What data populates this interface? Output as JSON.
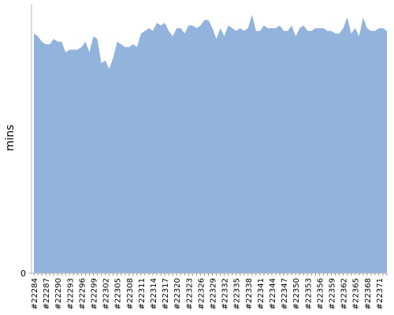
{
  "chart_data": {
    "type": "area",
    "ylabel": "mins",
    "categories": [
      "#22284",
      null,
      null,
      "#22287",
      null,
      null,
      "#22290",
      null,
      null,
      "#22293",
      null,
      null,
      "#22296",
      null,
      null,
      "#22299",
      null,
      null,
      "#22302",
      null,
      null,
      "#22305",
      null,
      null,
      "#22308",
      null,
      null,
      "#22311",
      null,
      null,
      "#22314",
      null,
      null,
      "#22317",
      null,
      null,
      "#22320",
      null,
      null,
      "#22323",
      null,
      null,
      "#22326",
      null,
      null,
      "#22329",
      null,
      null,
      "#22332",
      null,
      null,
      "#22335",
      null,
      null,
      "#22338",
      null,
      null,
      "#22341",
      null,
      null,
      "#22344",
      null,
      null,
      "#22347",
      null,
      null,
      "#22350",
      null,
      null,
      "#22353",
      null,
      null,
      "#22356",
      null,
      null,
      "#22359",
      null,
      null,
      "#22362",
      null,
      null,
      "#22365",
      null,
      null,
      "#22368",
      null,
      null,
      "#22371",
      null,
      null
    ],
    "values": [
      89,
      88,
      86,
      85,
      85,
      87,
      86,
      86,
      82,
      83,
      83,
      83,
      84,
      86,
      82,
      88,
      87,
      78,
      79,
      76,
      80,
      86,
      85,
      84,
      84,
      85,
      84,
      89,
      90,
      91,
      90,
      93,
      92,
      93,
      90,
      88,
      91,
      91,
      89,
      92,
      92,
      91,
      92,
      94,
      94,
      91,
      87,
      91,
      88,
      92,
      91,
      90,
      91,
      90,
      91,
      96,
      90,
      90,
      92,
      91,
      91,
      91,
      92,
      90,
      90,
      92,
      88,
      91,
      92,
      90,
      90,
      91,
      91,
      91,
      90,
      90,
      89,
      89,
      91,
      95,
      89,
      91,
      88,
      95,
      91,
      90,
      90,
      91,
      91,
      90
    ],
    "color": "#92b3dc",
    "ylim": [
      0,
      100
    ],
    "yticks": [
      0
    ]
  }
}
